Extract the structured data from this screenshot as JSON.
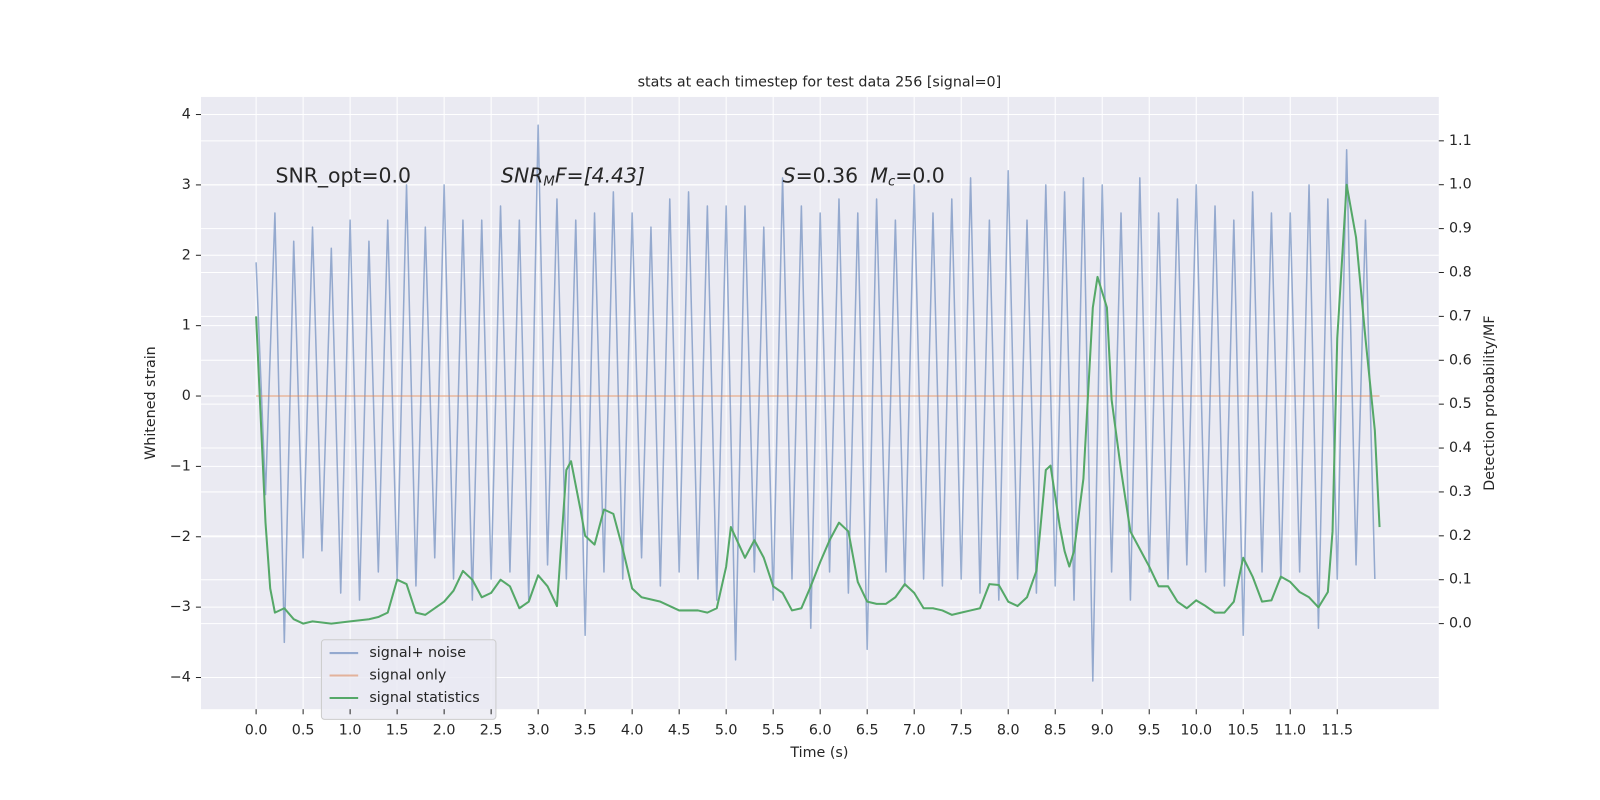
{
  "chart_data": {
    "type": "line",
    "title": "stats at each timestep for test data 256 [signal=0]",
    "xlabel": "Time (s)",
    "ylabel": "Whitened strain",
    "y2label": "Detection probability/MF",
    "annotations": [
      {
        "parts": [
          "SNR_opt=0.0"
        ]
      },
      {
        "parts": [
          "SNR",
          "M",
          "F=[4.43]"
        ]
      },
      {
        "parts": [
          "S",
          "=0.36",
          "M",
          "c",
          "=0.0"
        ]
      }
    ],
    "xlim": [
      -0.586,
      12.58
    ],
    "ylim": [
      -4.45,
      4.25
    ],
    "y2lim": [
      -0.195,
      1.2
    ],
    "xticks": [
      {
        "value": 0,
        "label": "0.0"
      },
      0.5,
      {
        "value": 1,
        "label": "1.0"
      },
      1.5,
      {
        "value": 2,
        "label": "2.0"
      },
      2.5,
      {
        "value": 3,
        "label": "3.0"
      },
      3.5,
      {
        "value": 4,
        "label": "4.0"
      },
      4.5,
      {
        "value": 5,
        "label": "5.0"
      },
      5.5,
      {
        "value": 6,
        "label": "6.0"
      },
      6.5,
      {
        "value": 7,
        "label": "7.0"
      },
      7.5,
      {
        "value": 8,
        "label": "8.0"
      },
      8.5,
      {
        "value": 9,
        "label": "9.0"
      },
      9.5,
      {
        "value": 10,
        "label": "10.0"
      },
      10.5,
      {
        "value": 11,
        "label": "11.0"
      },
      11.5
    ],
    "yticks": [
      {
        "value": -4,
        "label": "−4"
      },
      {
        "value": -3,
        "label": "−3"
      },
      {
        "value": -2,
        "label": "−2"
      },
      {
        "value": -1,
        "label": "−1"
      },
      0,
      1,
      2,
      3,
      4
    ],
    "y2ticks": [
      {
        "value": 0,
        "label": "0.0"
      },
      0.1,
      0.2,
      0.3,
      0.4,
      0.5,
      0.6,
      0.7,
      0.8,
      0.9,
      {
        "value": 1,
        "label": "1.0"
      },
      1.1
    ],
    "grid": true,
    "legend": "lower left",
    "series": [
      {
        "name": "signal+ noise",
        "color": "#4c72b0",
        "axis": "y",
        "x": [
          0,
          0.1,
          0.2,
          0.3,
          0.4,
          0.5,
          0.6,
          0.7,
          0.8,
          0.9,
          1,
          1.1,
          1.2,
          1.3,
          1.4,
          1.5,
          1.6,
          1.7,
          1.8,
          1.9,
          2,
          2.1,
          2.2,
          2.3,
          2.4,
          2.5,
          2.6,
          2.7,
          2.8,
          2.9,
          3,
          3.1,
          3.2,
          3.3,
          3.4,
          3.5,
          3.6,
          3.7,
          3.8,
          3.9,
          4,
          4.1,
          4.2,
          4.3,
          4.4,
          4.5,
          4.6,
          4.7,
          4.8,
          4.9,
          5,
          5.1,
          5.2,
          5.3,
          5.4,
          5.5,
          5.6,
          5.7,
          5.8,
          5.9,
          6,
          6.1,
          6.2,
          6.3,
          6.4,
          6.5,
          6.6,
          6.7,
          6.8,
          6.9,
          7,
          7.1,
          7.2,
          7.3,
          7.4,
          7.5,
          7.6,
          7.7,
          7.8,
          7.9,
          8,
          8.1,
          8.2,
          8.3,
          8.4,
          8.5,
          8.6,
          8.7,
          8.8,
          8.9,
          9,
          9.1,
          9.2,
          9.3,
          9.4,
          9.5,
          9.6,
          9.7,
          9.8,
          9.9,
          10,
          10.1,
          10.2,
          10.3,
          10.4,
          10.5,
          10.6,
          10.7,
          10.8,
          10.9,
          11,
          11.1,
          11.2,
          11.3,
          11.4,
          11.5,
          11.6,
          11.7,
          11.8,
          11.9
        ],
        "values": [
          1.9,
          -1.4,
          2.6,
          -3.5,
          2.2,
          -2.3,
          2.4,
          -2.2,
          2.1,
          -2.8,
          2.5,
          -2.9,
          2.2,
          -2.5,
          2.5,
          -2.6,
          3.0,
          -2.7,
          2.4,
          -2.3,
          3.0,
          -2.6,
          2.5,
          -2.9,
          2.5,
          -2.6,
          2.7,
          -2.5,
          2.5,
          -2.9,
          3.85,
          -2.4,
          2.8,
          -2.6,
          2.5,
          -3.4,
          2.6,
          -2.5,
          2.9,
          -2.6,
          2.6,
          -2.3,
          2.4,
          -2.7,
          2.8,
          -2.5,
          2.9,
          -2.6,
          2.7,
          -2.9,
          2.7,
          -3.75,
          2.7,
          -2.5,
          2.4,
          -2.9,
          3.1,
          -2.6,
          2.7,
          -3.3,
          2.6,
          -2.5,
          2.8,
          -2.8,
          2.6,
          -3.6,
          2.8,
          -2.5,
          2.5,
          -2.7,
          3.0,
          -2.6,
          2.6,
          -2.7,
          2.8,
          -2.6,
          3.1,
          -2.8,
          2.5,
          -2.9,
          3.2,
          -2.6,
          2.5,
          -2.8,
          3.0,
          -2.7,
          2.9,
          -2.9,
          3.1,
          -4.05,
          3.0,
          -2.5,
          2.6,
          -2.9,
          3.1,
          -2.5,
          2.6,
          -2.6,
          2.8,
          -2.4,
          3.0,
          -2.5,
          2.7,
          -2.7,
          2.5,
          -3.4,
          2.9,
          -2.5,
          2.6,
          -2.6,
          2.6,
          -2.5,
          3.0,
          -3.3,
          2.8,
          -2.6,
          3.5,
          -2.4,
          2.5,
          -2.6
        ]
      },
      {
        "name": "signal only",
        "color": "#dd8452",
        "axis": "y",
        "x": [
          0,
          11.95
        ],
        "values": [
          0,
          0
        ]
      },
      {
        "name": "signal statistics",
        "color": "#55a868",
        "axis": "y2",
        "x": [
          0,
          0.1,
          0.15,
          0.2,
          0.3,
          0.4,
          0.5,
          0.6,
          0.8,
          1,
          1.2,
          1.3,
          1.4,
          1.5,
          1.6,
          1.7,
          1.8,
          2,
          2.1,
          2.2,
          2.3,
          2.4,
          2.5,
          2.6,
          2.7,
          2.8,
          2.9,
          3,
          3.1,
          3.2,
          3.3,
          3.35,
          3.45,
          3.5,
          3.6,
          3.7,
          3.8,
          3.9,
          4,
          4.1,
          4.3,
          4.5,
          4.7,
          4.8,
          4.9,
          5,
          5.05,
          5.2,
          5.3,
          5.4,
          5.5,
          5.6,
          5.7,
          5.8,
          5.9,
          6,
          6.1,
          6.2,
          6.3,
          6.4,
          6.5,
          6.6,
          6.7,
          6.8,
          6.9,
          7,
          7.1,
          7.2,
          7.3,
          7.4,
          7.5,
          7.6,
          7.7,
          7.8,
          7.9,
          8,
          8.1,
          8.2,
          8.3,
          8.4,
          8.45,
          8.55,
          8.6,
          8.65,
          8.7,
          8.8,
          8.9,
          8.95,
          9.05,
          9.1,
          9.2,
          9.3,
          9.5,
          9.6,
          9.7,
          9.8,
          9.9,
          10,
          10.1,
          10.2,
          10.3,
          10.4,
          10.5,
          10.6,
          10.7,
          10.8,
          10.9,
          11,
          11.1,
          11.2,
          11.3,
          11.4,
          11.45,
          11.5,
          11.6,
          11.7,
          11.8,
          11.9,
          11.95
        ],
        "values": [
          0.7,
          0.23,
          0.08,
          0.025,
          0.035,
          0.01,
          0,
          0.005,
          0,
          0.005,
          0.01,
          0.015,
          0.025,
          0.1,
          0.09,
          0.025,
          0.02,
          0.05,
          0.075,
          0.12,
          0.1,
          0.06,
          0.07,
          0.1,
          0.085,
          0.035,
          0.05,
          0.11,
          0.085,
          0.04,
          0.35,
          0.37,
          0.26,
          0.2,
          0.18,
          0.26,
          0.25,
          0.17,
          0.08,
          0.06,
          0.05,
          0.03,
          0.03,
          0.025,
          0.035,
          0.13,
          0.22,
          0.15,
          0.19,
          0.15,
          0.085,
          0.07,
          0.03,
          0.035,
          0.085,
          0.14,
          0.19,
          0.23,
          0.21,
          0.095,
          0.05,
          0.045,
          0.045,
          0.06,
          0.09,
          0.07,
          0.035,
          0.035,
          0.03,
          0.02,
          0.025,
          0.03,
          0.035,
          0.09,
          0.088,
          0.05,
          0.04,
          0.06,
          0.12,
          0.35,
          0.36,
          0.22,
          0.165,
          0.13,
          0.165,
          0.33,
          0.72,
          0.79,
          0.72,
          0.51,
          0.35,
          0.21,
          0.13,
          0.085,
          0.085,
          0.05,
          0.035,
          0.053,
          0.04,
          0.025,
          0.025,
          0.05,
          0.15,
          0.107,
          0.05,
          0.053,
          0.107,
          0.095,
          0.072,
          0.06,
          0.037,
          0.072,
          0.21,
          0.65,
          1.0,
          0.88,
          0.65,
          0.44,
          0.22
        ]
      }
    ]
  }
}
